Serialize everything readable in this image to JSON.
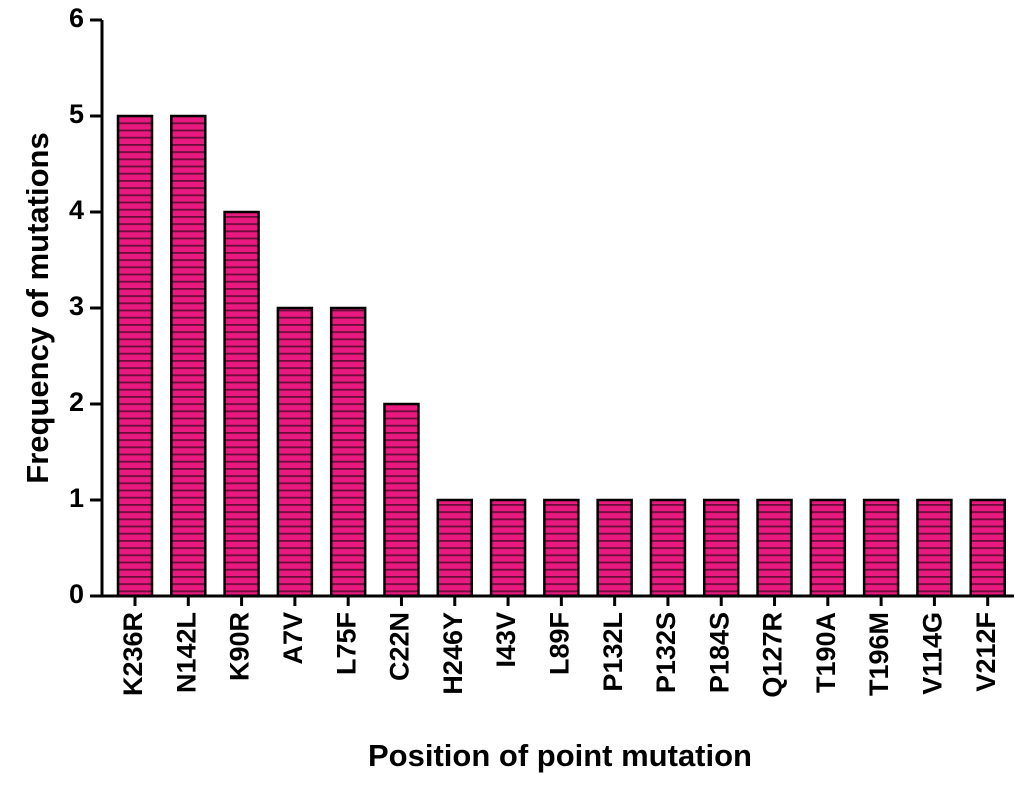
{
  "chart_data": {
    "type": "bar",
    "x_label": "Position of point mutation",
    "y_label": "Frequency of mutations",
    "categories": [
      "K236R",
      "N142L",
      "K90R",
      "A7V",
      "L75F",
      "C22N",
      "H246Y",
      "I43V",
      "L89F",
      "P132L",
      "P132S",
      "P184S",
      "Q127R",
      "T190A",
      "T196M",
      "V114G",
      "V212F"
    ],
    "values": [
      5,
      5,
      4,
      3,
      3,
      2,
      1,
      1,
      1,
      1,
      1,
      1,
      1,
      1,
      1,
      1,
      1
    ],
    "color": "#e8197f",
    "ylim": [
      0,
      6
    ],
    "yticks": [
      0,
      1,
      2,
      3,
      4,
      5,
      6
    ],
    "grid": false
  }
}
